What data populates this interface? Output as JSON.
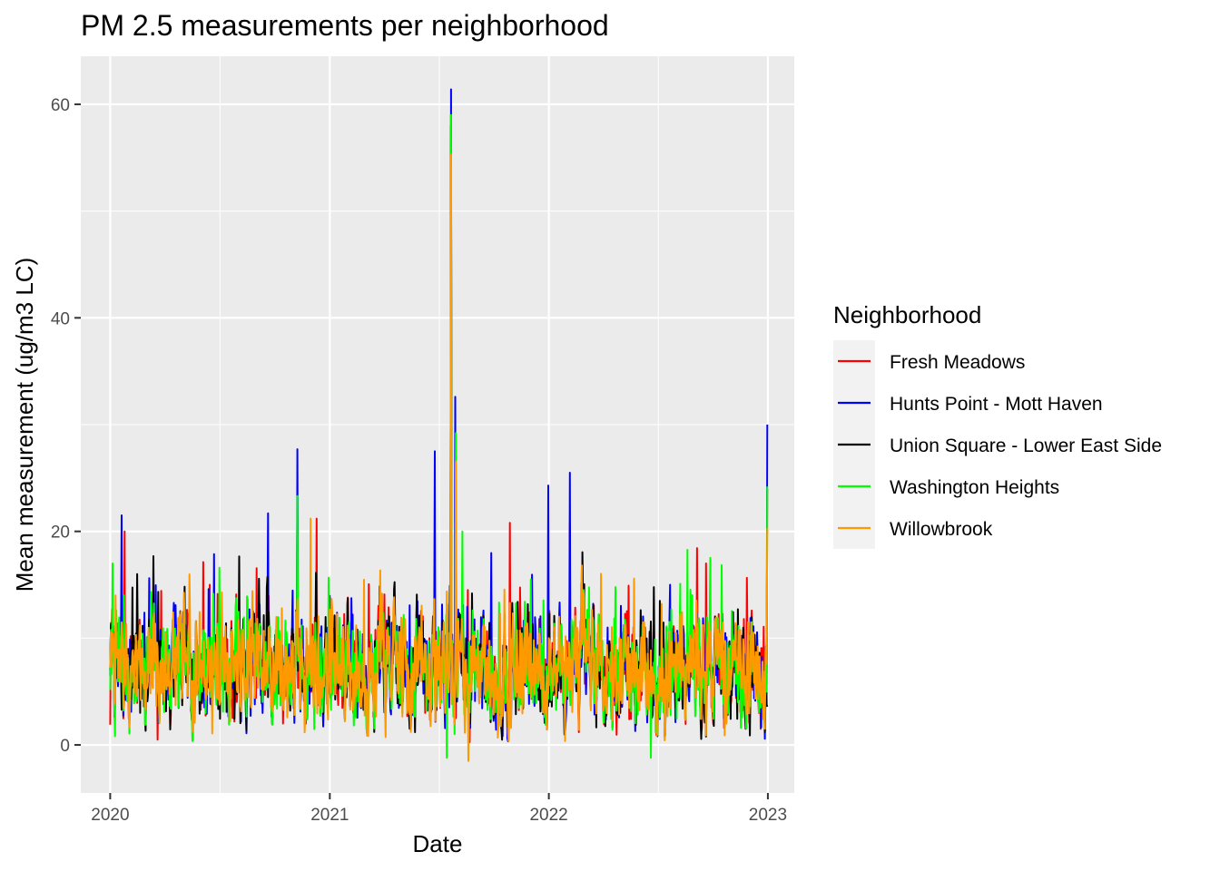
{
  "chart_data": {
    "type": "line",
    "title": "PM 2.5 measurements per neighborhood",
    "xlabel": "Date",
    "ylabel": "Mean measurement (ug/m3 LC)",
    "x_range": [
      "2019-11-13",
      "2023-02-14"
    ],
    "ylim": [
      -4.5,
      64.5
    ],
    "x_ticks": [
      "2020",
      "2021",
      "2022",
      "2023"
    ],
    "y_ticks": [
      0,
      20,
      40,
      60
    ],
    "grid": true,
    "legend_position": "right",
    "legend_title": "Neighborhood",
    "series": [
      {
        "name": "Fresh Meadows",
        "color": "#ff0000",
        "peaks": [
          [
            "2020-01-01",
            1.9
          ],
          [
            "2020-01-25",
            20.0
          ],
          [
            "2020-03-20",
            0.5
          ],
          [
            "2020-06-15",
            15.0
          ],
          [
            "2020-11-08",
            23.0
          ],
          [
            "2020-12-10",
            21.2
          ],
          [
            "2021-07-22",
            59.0
          ],
          [
            "2021-10-28",
            20.8
          ],
          [
            "2022-02-05",
            20.7
          ],
          [
            "2022-09-20",
            17.0
          ],
          [
            "2022-12-31",
            24.0
          ]
        ]
      },
      {
        "name": "Hunts Point - Mott Haven",
        "color": "#0000ff",
        "peaks": [
          [
            "2020-01-20",
            21.5
          ],
          [
            "2020-09-20",
            21.7
          ],
          [
            "2020-11-08",
            27.7
          ],
          [
            "2021-06-25",
            27.5
          ],
          [
            "2021-07-22",
            61.4
          ],
          [
            "2021-07-29",
            32.6
          ],
          [
            "2021-12-31",
            24.3
          ],
          [
            "2022-02-05",
            25.5
          ],
          [
            "2022-12-31",
            30.0
          ]
        ]
      },
      {
        "name": "Union Square - Lower East Side",
        "color": "#000000",
        "peaks": [
          [
            "2020-01-01",
            7.0
          ],
          [
            "2020-01-20",
            3.3
          ],
          [
            "2020-02-15",
            16.0
          ],
          [
            "2020-02-20",
            3.0
          ],
          [
            "2021-07-22",
            58.0
          ]
        ]
      },
      {
        "name": "Washington Heights",
        "color": "#00ff00",
        "peaks": [
          [
            "2020-01-05",
            17.0
          ],
          [
            "2020-07-01",
            16.6
          ],
          [
            "2020-11-08",
            23.3
          ],
          [
            "2021-07-22",
            59.0
          ],
          [
            "2021-07-30",
            29.2
          ],
          [
            "2021-08-10",
            20.0
          ],
          [
            "2021-07-15",
            -1.2
          ],
          [
            "2022-06-20",
            -1.2
          ],
          [
            "2022-12-31",
            24.2
          ]
        ]
      },
      {
        "name": "Willowbrook",
        "color": "#ff9900",
        "peaks": [
          [
            "2020-01-10",
            14.0
          ],
          [
            "2020-11-30",
            21.2
          ],
          [
            "2021-07-22",
            55.3
          ],
          [
            "2021-07-30",
            26.5
          ],
          [
            "2021-08-20",
            -1.5
          ],
          [
            "2022-02-25",
            16.8
          ],
          [
            "2022-12-31",
            20.3
          ]
        ]
      }
    ]
  }
}
